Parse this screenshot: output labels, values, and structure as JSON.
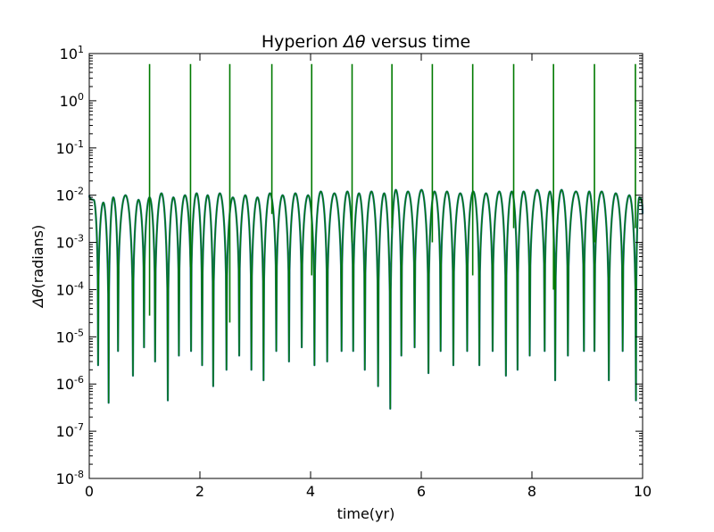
{
  "chart_data": {
    "type": "line",
    "title": "Hyperion Δθ versus time",
    "title_parts": {
      "pre": "Hyperion ",
      "symbol": "Δθ",
      "post": " versus time"
    },
    "xlabel": "time(yr)",
    "ylabel": "Δθ(radians)",
    "ylabel_parts": {
      "symbol": "Δθ",
      "rest": "(radians)"
    },
    "xlim": [
      0,
      10
    ],
    "ylim": [
      1e-08,
      10
    ],
    "yscale": "log",
    "grid": false,
    "x_ticks": [
      "0",
      "2",
      "4",
      "6",
      "8",
      "10"
    ],
    "y_ticks": [
      {
        "base": "10",
        "exp": "-8"
      },
      {
        "base": "10",
        "exp": "-7"
      },
      {
        "base": "10",
        "exp": "-6"
      },
      {
        "base": "10",
        "exp": "-5"
      },
      {
        "base": "10",
        "exp": "-4"
      },
      {
        "base": "10",
        "exp": "-3"
      },
      {
        "base": "10",
        "exp": "-2"
      },
      {
        "base": "10",
        "exp": "-1"
      },
      {
        "base": "10",
        "exp": "0"
      },
      {
        "base": "10",
        "exp": "1"
      }
    ],
    "series_colors": [
      "#1f6e8c",
      "#007a00"
    ],
    "oscillation": {
      "minima_t": [
        0.0,
        0.16,
        0.35,
        0.52,
        0.79,
        0.99,
        1.19,
        1.42,
        1.62,
        1.84,
        2.04,
        2.24,
        2.48,
        2.71,
        2.93,
        3.15,
        3.38,
        3.61,
        3.84,
        4.07,
        4.3,
        4.56,
        4.77,
        4.98,
        5.22,
        5.44,
        5.64,
        5.88,
        6.13,
        6.35,
        6.58,
        6.83,
        7.05,
        7.29,
        7.53,
        7.74,
        7.96,
        8.23,
        8.42,
        8.65,
        8.94,
        9.13,
        9.39,
        9.64,
        9.88,
        10.0
      ],
      "minima_val": [
        0.01,
        2.5e-06,
        4e-07,
        5e-06,
        1.5e-06,
        6e-06,
        3e-06,
        4.5e-07,
        4e-06,
        5e-06,
        2.5e-06,
        9e-07,
        2e-06,
        4e-06,
        2e-06,
        1.2e-06,
        5e-06,
        3e-06,
        6e-06,
        2.5e-06,
        3e-06,
        5e-06,
        5e-06,
        2e-06,
        9e-07,
        3e-07,
        4e-06,
        6e-06,
        1.7e-06,
        5e-06,
        2.5e-06,
        5e-06,
        2.5e-06,
        5e-06,
        1.5e-06,
        2e-06,
        4e-06,
        5e-06,
        1.2e-06,
        4e-06,
        5e-06,
        5e-06,
        1.2e-06,
        5e-06,
        4.5e-07,
        0.004
      ],
      "peak_val": [
        0.008,
        0.007,
        0.009,
        0.01,
        0.008,
        0.009,
        0.011,
        0.009,
        0.01,
        0.011,
        0.01,
        0.011,
        0.009,
        0.01,
        0.009,
        0.011,
        0.01,
        0.011,
        0.01,
        0.012,
        0.011,
        0.012,
        0.011,
        0.012,
        0.011,
        0.013,
        0.012,
        0.013,
        0.012,
        0.012,
        0.011,
        0.012,
        0.011,
        0.012,
        0.012,
        0.012,
        0.013,
        0.012,
        0.013,
        0.012,
        0.012,
        0.012,
        0.011,
        0.01,
        0.009
      ]
    },
    "spikes": {
      "t": [
        1.09,
        1.83,
        2.54,
        3.3,
        4.02,
        4.75,
        5.47,
        6.2,
        6.93,
        7.67,
        8.39,
        9.13,
        9.87
      ],
      "value": [
        6,
        6,
        6,
        6,
        6,
        6,
        6,
        6,
        6,
        6,
        6,
        6,
        6
      ],
      "low": [
        2.8e-05,
        0.0003,
        2e-05,
        0.004,
        0.0002,
        0.001,
        0.002,
        0.001,
        0.0002,
        0.002,
        0.0001,
        0.001,
        0.002
      ]
    }
  }
}
